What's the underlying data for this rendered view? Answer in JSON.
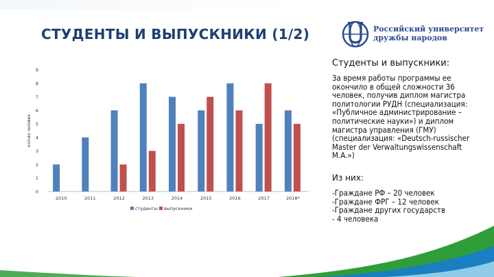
{
  "slide": {
    "title": "СТУДЕНТЫ И ВЫПУСКНИКИ (1/2)"
  },
  "logo": {
    "line1": "Российский университет",
    "line2": "дружбы народов",
    "brand_color": "#2a4b8d",
    "icon": "rudn-globe-emblem"
  },
  "right_panel": {
    "heading": "Студенты и выпускники:",
    "paragraph": "За время работы программы ее окончило в общей сложности 36 человек, получив диплом магистра политологии РУДН (специализация:  «Публичное администрирование – политические науки») и диплом магистра управления (ГМУ) (специализация: «Deutsch-russischer Master der Verwaltungswissenschaft M.A.»)",
    "subheading": "Из них:",
    "items": [
      "-Граждане РФ – 20 человек",
      "-Граждане ФРГ – 12 человек",
      "-Граждане других государств",
      "- 4 человека"
    ]
  },
  "chart_data": {
    "type": "bar",
    "categories": [
      "2010",
      "2011",
      "2012",
      "2013",
      "2014",
      "2015",
      "2016",
      "2017",
      "2018*"
    ],
    "series": [
      {
        "name": "студенты",
        "values": [
          2,
          4,
          6,
          8,
          7,
          6,
          8,
          5,
          6
        ],
        "color": "#4f81bd"
      },
      {
        "name": "выпускники",
        "values": [
          null,
          null,
          2,
          3,
          5,
          7,
          6,
          8,
          5
        ],
        "color": "#c0504d"
      }
    ],
    "ylabel": "кол-во человек",
    "xlabel": "",
    "ylim": [
      0,
      9
    ],
    "yticks": [
      "0",
      "1",
      "2",
      "3",
      "4",
      "5",
      "6",
      "7",
      "8",
      "9"
    ],
    "grid": false,
    "legend_position": "bottom"
  },
  "decor": {
    "wave_green": "#2f9e3a",
    "wave_blue": "#1a7fc0",
    "wave_light": "#8fcbe8"
  }
}
